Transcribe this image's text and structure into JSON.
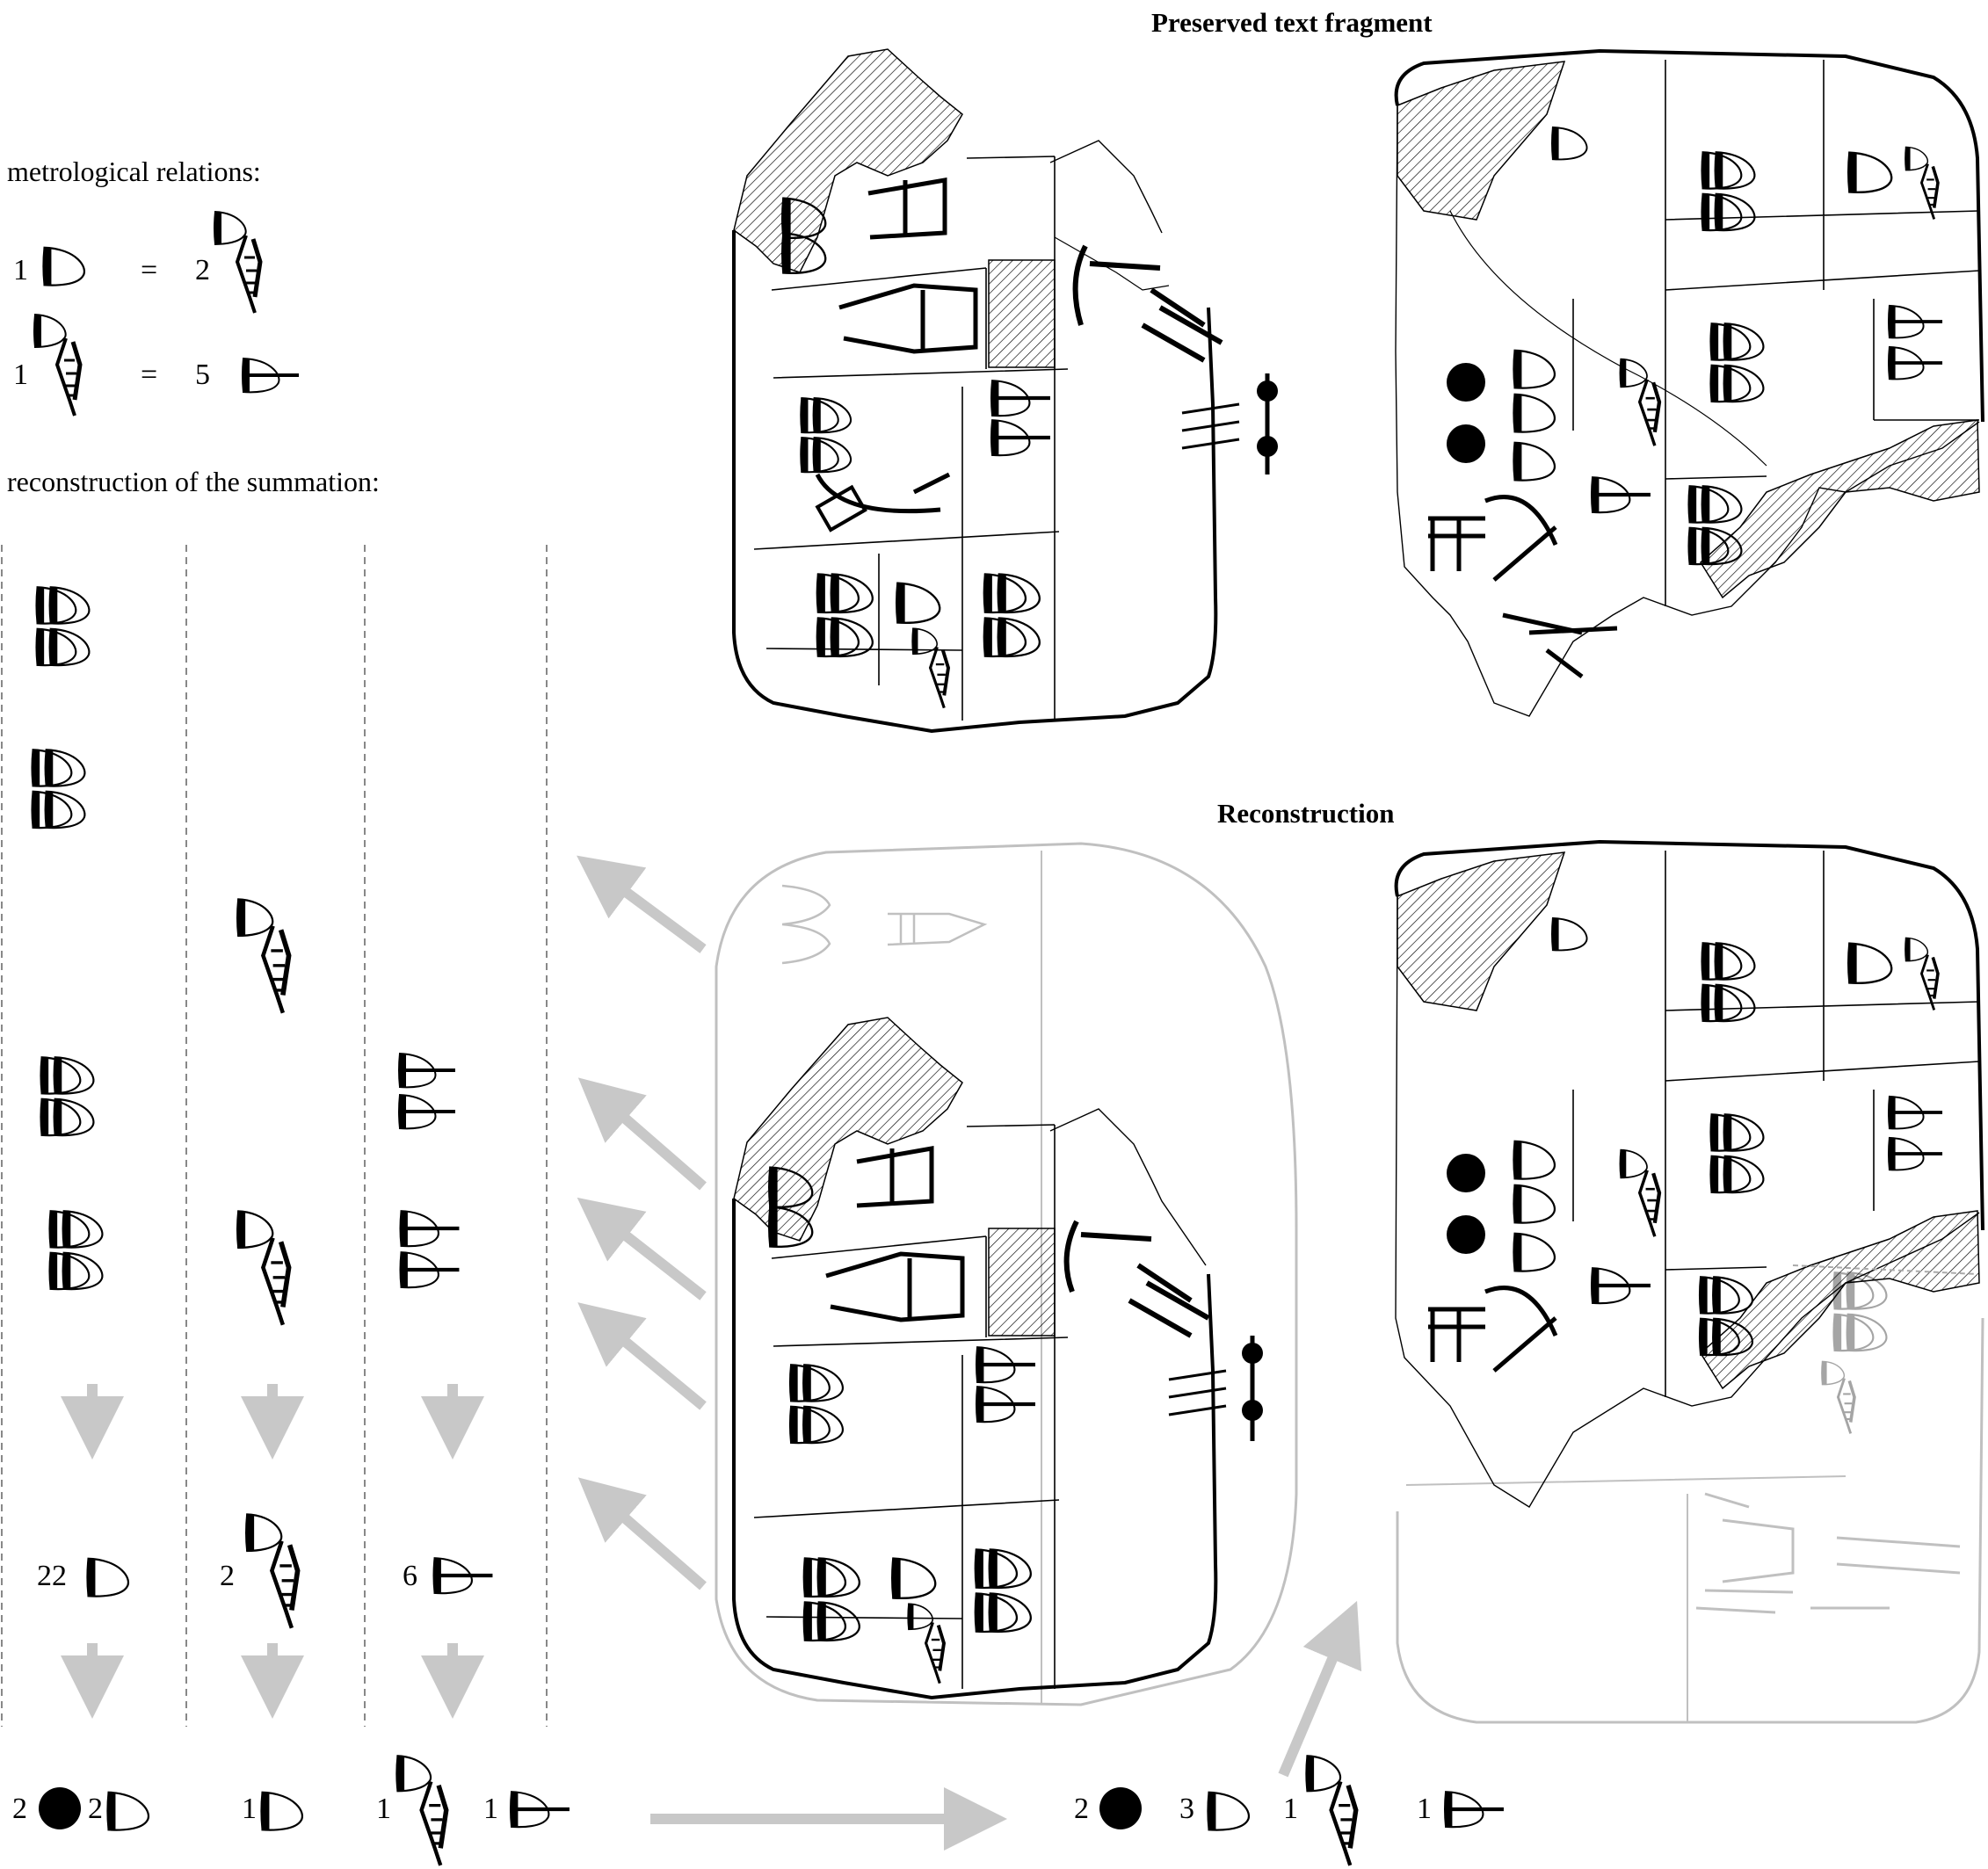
{
  "headings": {
    "preserved": "Preserved text fragment",
    "reconstruction": "Reconstruction"
  },
  "metrology": {
    "title": "metrological relations:",
    "row1": {
      "left_count": "1",
      "equals": "=",
      "right_count": "2"
    },
    "row2": {
      "left_count": "1",
      "equals": "=",
      "right_count": "5"
    }
  },
  "summation": {
    "title": "reconstruction of the summation:",
    "subtotals": [
      "22",
      "2",
      "6"
    ],
    "results": [
      "2",
      "2",
      "1",
      "1",
      "1"
    ]
  },
  "final_total": [
    "2",
    "3",
    "1",
    "1"
  ],
  "colors": {
    "ink": "#000000",
    "reconstructed": "#c4c4c4",
    "arrow": "#c8c8c8",
    "guide": "#888888"
  },
  "icons": [
    "numeral-D-sign",
    "numeral-D-dot-sign",
    "numeral-compound-sign",
    "numeral-dotted-sign",
    "summation-arrow",
    "tablet-outline"
  ]
}
